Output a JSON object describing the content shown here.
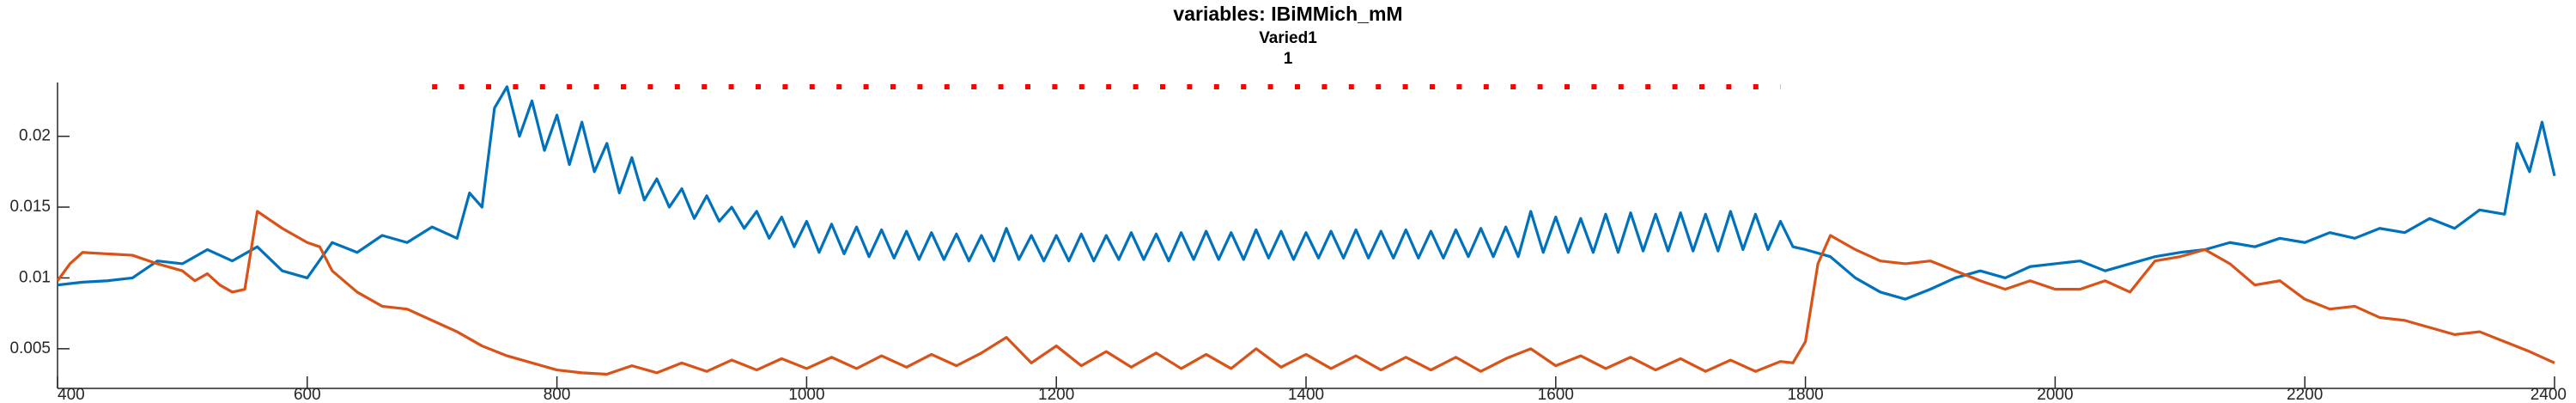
{
  "chart_data": {
    "type": "line",
    "title": "variables: IBiMMich_mM",
    "subtitle": [
      "Varied1",
      "1"
    ],
    "xlim": [
      400,
      2400
    ],
    "xticks": [
      400,
      600,
      800,
      1000,
      1200,
      1400,
      1600,
      1800,
      2000,
      2200,
      2400
    ],
    "ylim": [
      0.0022,
      0.0238
    ],
    "yticks": [
      0.005,
      0.01,
      0.015,
      0.02
    ],
    "grid": false,
    "series": [
      {
        "color": "#0072bd",
        "style": "solid",
        "x": [
          400,
          420,
          440,
          460,
          480,
          500,
          520,
          540,
          560,
          580,
          600,
          620,
          640,
          660,
          680,
          700,
          720,
          730,
          740,
          750,
          760,
          770,
          780,
          790,
          800,
          810,
          820,
          830,
          840,
          850,
          860,
          870,
          880,
          890,
          900,
          910,
          920,
          930,
          940,
          950,
          960,
          970,
          980,
          990,
          1000,
          1010,
          1020,
          1030,
          1040,
          1050,
          1060,
          1070,
          1080,
          1090,
          1100,
          1110,
          1120,
          1130,
          1140,
          1150,
          1160,
          1170,
          1180,
          1190,
          1200,
          1210,
          1220,
          1230,
          1240,
          1250,
          1260,
          1270,
          1280,
          1290,
          1300,
          1310,
          1320,
          1330,
          1340,
          1350,
          1360,
          1370,
          1380,
          1390,
          1400,
          1410,
          1420,
          1430,
          1440,
          1450,
          1460,
          1470,
          1480,
          1490,
          1500,
          1510,
          1520,
          1530,
          1540,
          1550,
          1560,
          1570,
          1580,
          1590,
          1600,
          1610,
          1620,
          1630,
          1640,
          1650,
          1660,
          1670,
          1680,
          1690,
          1700,
          1710,
          1720,
          1730,
          1740,
          1750,
          1760,
          1770,
          1780,
          1790,
          1800,
          1820,
          1840,
          1860,
          1880,
          1900,
          1920,
          1940,
          1960,
          1980,
          2000,
          2020,
          2040,
          2060,
          2080,
          2100,
          2120,
          2140,
          2160,
          2180,
          2200,
          2220,
          2240,
          2260,
          2280,
          2300,
          2320,
          2340,
          2360,
          2370,
          2380,
          2390,
          2400
        ],
        "values": [
          0.0095,
          0.0097,
          0.0098,
          0.01,
          0.0112,
          0.011,
          0.012,
          0.0112,
          0.0122,
          0.0105,
          0.01,
          0.0125,
          0.0118,
          0.013,
          0.0125,
          0.0136,
          0.0128,
          0.016,
          0.015,
          0.022,
          0.0235,
          0.02,
          0.0225,
          0.019,
          0.0215,
          0.018,
          0.021,
          0.0175,
          0.0195,
          0.016,
          0.0185,
          0.0155,
          0.017,
          0.015,
          0.0163,
          0.0142,
          0.0158,
          0.014,
          0.015,
          0.0135,
          0.0147,
          0.0128,
          0.0143,
          0.0122,
          0.014,
          0.0118,
          0.0138,
          0.0117,
          0.0136,
          0.0115,
          0.0134,
          0.0114,
          0.0133,
          0.0113,
          0.0132,
          0.0113,
          0.0131,
          0.0112,
          0.013,
          0.0112,
          0.0135,
          0.0113,
          0.013,
          0.0112,
          0.013,
          0.0112,
          0.0131,
          0.0112,
          0.013,
          0.0113,
          0.0132,
          0.0113,
          0.0131,
          0.0112,
          0.0132,
          0.0113,
          0.0133,
          0.0113,
          0.0132,
          0.0113,
          0.0134,
          0.0114,
          0.0133,
          0.0113,
          0.0132,
          0.0114,
          0.0133,
          0.0114,
          0.0134,
          0.0114,
          0.0133,
          0.0114,
          0.0134,
          0.0114,
          0.0133,
          0.0114,
          0.0134,
          0.0115,
          0.0135,
          0.0115,
          0.0136,
          0.0115,
          0.0147,
          0.0118,
          0.0143,
          0.0118,
          0.0142,
          0.0118,
          0.0145,
          0.0118,
          0.0146,
          0.0119,
          0.0145,
          0.0119,
          0.0146,
          0.0119,
          0.0145,
          0.0119,
          0.0147,
          0.012,
          0.0145,
          0.012,
          0.014,
          0.0122,
          0.012,
          0.0115,
          0.01,
          0.009,
          0.0085,
          0.0092,
          0.01,
          0.0105,
          0.01,
          0.0108,
          0.011,
          0.0112,
          0.0105,
          0.011,
          0.0115,
          0.0118,
          0.012,
          0.0125,
          0.0122,
          0.0128,
          0.0125,
          0.0132,
          0.0128,
          0.0135,
          0.0132,
          0.0142,
          0.0135,
          0.0148,
          0.0145,
          0.0195,
          0.0175,
          0.021,
          0.0172
        ]
      },
      {
        "color": "#d95319",
        "style": "solid",
        "x": [
          400,
          410,
          420,
          440,
          460,
          480,
          500,
          510,
          520,
          530,
          540,
          550,
          560,
          580,
          600,
          610,
          620,
          640,
          660,
          680,
          700,
          720,
          740,
          760,
          780,
          800,
          820,
          840,
          860,
          880,
          900,
          920,
          940,
          960,
          980,
          1000,
          1020,
          1040,
          1060,
          1080,
          1100,
          1120,
          1140,
          1160,
          1180,
          1200,
          1220,
          1240,
          1260,
          1280,
          1300,
          1320,
          1340,
          1360,
          1380,
          1400,
          1420,
          1440,
          1460,
          1480,
          1500,
          1520,
          1540,
          1560,
          1580,
          1600,
          1620,
          1640,
          1660,
          1680,
          1700,
          1720,
          1740,
          1760,
          1780,
          1790,
          1800,
          1810,
          1820,
          1840,
          1860,
          1880,
          1900,
          1920,
          1940,
          1960,
          1980,
          2000,
          2020,
          2040,
          2060,
          2080,
          2100,
          2120,
          2140,
          2160,
          2180,
          2200,
          2220,
          2240,
          2260,
          2280,
          2300,
          2320,
          2340,
          2360,
          2380,
          2400
        ],
        "values": [
          0.0098,
          0.011,
          0.0118,
          0.0117,
          0.0116,
          0.011,
          0.0105,
          0.0098,
          0.0103,
          0.0095,
          0.009,
          0.0092,
          0.0147,
          0.0135,
          0.0125,
          0.0122,
          0.0105,
          0.009,
          0.008,
          0.0078,
          0.007,
          0.0062,
          0.0052,
          0.0045,
          0.004,
          0.0035,
          0.0033,
          0.0032,
          0.0038,
          0.0033,
          0.004,
          0.0034,
          0.0042,
          0.0035,
          0.0043,
          0.0036,
          0.0044,
          0.0036,
          0.0045,
          0.0037,
          0.0046,
          0.0038,
          0.0047,
          0.0058,
          0.004,
          0.0052,
          0.0038,
          0.0048,
          0.0037,
          0.0047,
          0.0036,
          0.0046,
          0.0036,
          0.005,
          0.0037,
          0.0046,
          0.0036,
          0.0045,
          0.0035,
          0.0044,
          0.0035,
          0.0044,
          0.0034,
          0.0043,
          0.005,
          0.0038,
          0.0045,
          0.0036,
          0.0044,
          0.0035,
          0.0043,
          0.0034,
          0.0042,
          0.0034,
          0.0041,
          0.004,
          0.0055,
          0.011,
          0.013,
          0.012,
          0.0112,
          0.011,
          0.0112,
          0.0105,
          0.0098,
          0.0092,
          0.0098,
          0.0092,
          0.0092,
          0.0098,
          0.009,
          0.0112,
          0.0115,
          0.012,
          0.011,
          0.0095,
          0.0098,
          0.0085,
          0.0078,
          0.008,
          0.0072,
          0.007,
          0.0065,
          0.006,
          0.0062,
          0.0055,
          0.0048,
          0.004
        ]
      },
      {
        "color": "#ff0000",
        "style": "dotted",
        "x": [
          700,
          1780
        ],
        "values": [
          0.0235,
          0.0235
        ]
      }
    ]
  }
}
